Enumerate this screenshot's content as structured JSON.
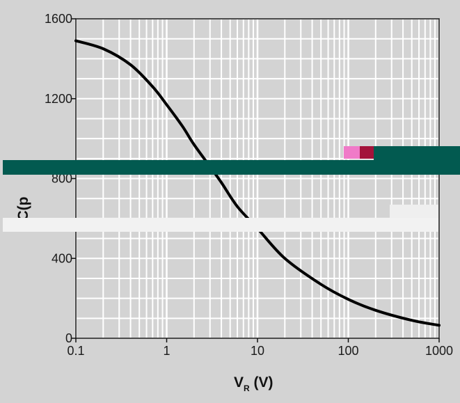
{
  "colors": {
    "background": "#d3d3d3",
    "plot_background": "#d3d3d3",
    "grid": "#ffffff",
    "curve": "#000000",
    "overlay_band_dark": "#025a50",
    "overlay_band_light": "#f2f2f2",
    "overlay_mark_pink": "#f07ac8",
    "overlay_mark_red": "#a3123a"
  },
  "chart_data": {
    "type": "line",
    "title": "",
    "xlabel": {
      "main": "V",
      "sub": "R",
      "unit": " (V)"
    },
    "ylabel": "C(p",
    "x_scale": "log",
    "xlim": [
      0.1,
      1000
    ],
    "ylim": [
      0,
      1600
    ],
    "x_ticks": [
      {
        "value": 0.1,
        "label": "0.1"
      },
      {
        "value": 1,
        "label": "1"
      },
      {
        "value": 10,
        "label": "10"
      },
      {
        "value": 100,
        "label": "100"
      },
      {
        "value": 1000,
        "label": "1000"
      }
    ],
    "y_ticks": [
      {
        "value": 0,
        "label": "0"
      },
      {
        "value": 400,
        "label": "400"
      },
      {
        "value": 800,
        "label": "800"
      },
      {
        "value": 1200,
        "label": "1200"
      },
      {
        "value": 1600,
        "label": "1600"
      }
    ],
    "grid": true,
    "series": [
      {
        "x": [
          0.1,
          0.2,
          0.4,
          0.7,
          1,
          1.5,
          2,
          3,
          4,
          6,
          10,
          20,
          50,
          100,
          200,
          500,
          1000
        ],
        "y": [
          1490,
          1450,
          1370,
          1260,
          1170,
          1060,
          970,
          860,
          780,
          660,
          550,
          400,
          270,
          195,
          140,
          90,
          65
        ]
      }
    ]
  }
}
